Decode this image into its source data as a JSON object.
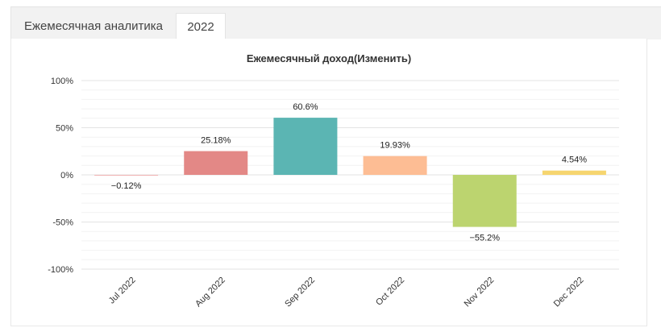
{
  "tabs": [
    {
      "label": "Ежемесячная аналитика"
    },
    {
      "label": "2022"
    }
  ],
  "chart_data": {
    "type": "bar",
    "title": "Ежемесячный доход(Изменить)",
    "categories": [
      "Jul 2022",
      "Aug 2022",
      "Sep 2022",
      "Oct 2022",
      "Nov 2022",
      "Dec 2022"
    ],
    "values": [
      -0.12,
      25.18,
      60.6,
      19.93,
      -55.2,
      4.54
    ],
    "value_labels": [
      "−0.12%",
      "25.18%",
      "60.6%",
      "19.93%",
      "−55.2%",
      "4.54%"
    ],
    "colors": [
      "#e06666",
      "#e38886",
      "#5bb5b3",
      "#fdbd94",
      "#bcd46f",
      "#f6d56f"
    ],
    "yticks": [
      100,
      50,
      0,
      -50,
      -100
    ],
    "ytick_labels": [
      "100%",
      "50%",
      "0%",
      "-50%",
      "-100%"
    ],
    "ylim": [
      -100,
      100
    ],
    "xlabel": "",
    "ylabel": "",
    "grid": true
  }
}
